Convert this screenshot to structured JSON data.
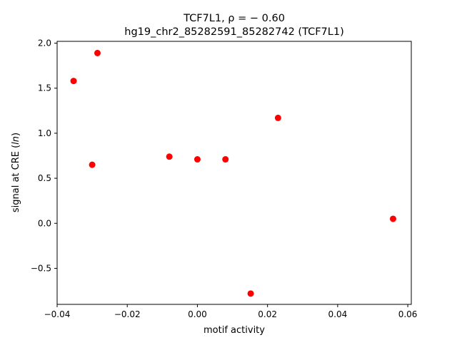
{
  "chart_data": {
    "type": "scatter",
    "title_line1": "TCF7L1, ρ = − 0.60",
    "title_line2": "hg19_chr2_85282591_85282742 (TCF7L1)",
    "xlabel": "motif activity",
    "ylabel": "signal at CRE (ln)",
    "xlim": [
      -0.04,
      0.061
    ],
    "ylim": [
      -0.9,
      2.02
    ],
    "xticks": [
      -0.04,
      -0.02,
      0.0,
      0.02,
      0.04,
      0.06
    ],
    "xtick_labels": [
      "−0.04",
      "−0.02",
      "0.00",
      "0.02",
      "0.04",
      "0.06"
    ],
    "yticks": [
      -0.5,
      0.0,
      0.5,
      1.0,
      1.5,
      2.0
    ],
    "ytick_labels": [
      "−0.5",
      "0.0",
      "0.5",
      "1.0",
      "1.5",
      "2.0"
    ],
    "grid": false,
    "marker_color": "#ff0000",
    "points": [
      {
        "x": -0.0353,
        "y": 1.58
      },
      {
        "x": -0.0285,
        "y": 1.89
      },
      {
        "x": -0.03,
        "y": 0.65
      },
      {
        "x": -0.008,
        "y": 0.74
      },
      {
        "x": 0.0,
        "y": 0.71
      },
      {
        "x": 0.008,
        "y": 0.71
      },
      {
        "x": 0.023,
        "y": 1.17
      },
      {
        "x": 0.0152,
        "y": -0.78
      },
      {
        "x": 0.0558,
        "y": 0.05
      }
    ]
  }
}
